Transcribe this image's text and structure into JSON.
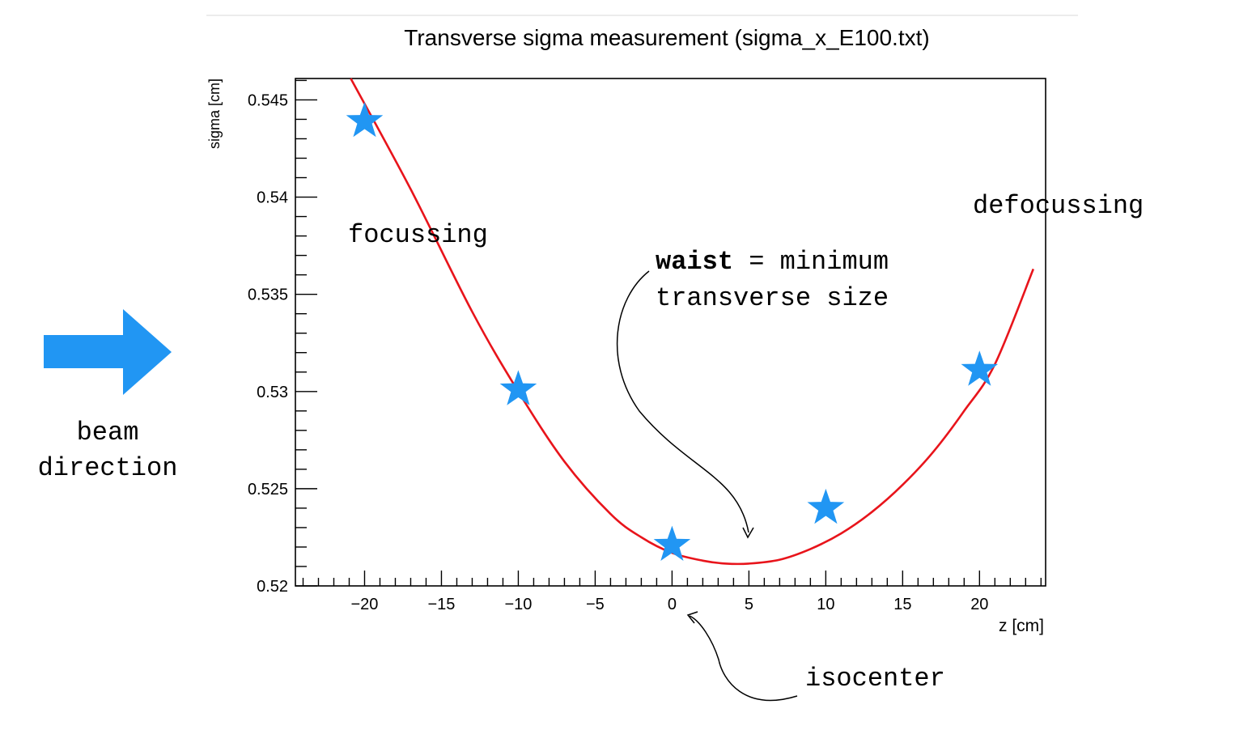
{
  "chart_data": {
    "type": "scatter",
    "title": "Transverse sigma measurement (sigma_x_E100.txt)",
    "xlabel": "z [cm]",
    "ylabel": "sigma [cm]",
    "xlim": [
      -24.5,
      24.3
    ],
    "ylim": [
      0.52,
      0.5461
    ],
    "x_ticks": [
      -20,
      -15,
      -10,
      -5,
      0,
      5,
      10,
      15,
      20
    ],
    "x_tick_labels": [
      "−20",
      "−15",
      "−10",
      "−5",
      "0",
      "5",
      "10",
      "15",
      "20"
    ],
    "y_ticks": [
      0.52,
      0.525,
      0.53,
      0.535,
      0.54,
      0.545
    ],
    "y_tick_labels": [
      "0.52",
      "0.525",
      "0.53",
      "0.535",
      "0.54",
      "0.545"
    ],
    "grid": false,
    "series": [
      {
        "marker": "star",
        "color": "#2196F3",
        "x": [
          -20,
          -10,
          0,
          10,
          20
        ],
        "y": [
          0.5439,
          0.5301,
          0.5221,
          0.524,
          0.5311
        ]
      }
    ],
    "fit_curve": {
      "color": "#E8141B",
      "x": [
        -20.9,
        -17,
        -13,
        -10,
        -7,
        -4,
        -2,
        0,
        2,
        3.5,
        5,
        7,
        9,
        11,
        13,
        15,
        17,
        19,
        21,
        23.5
      ],
      "y": [
        0.5461,
        0.5404,
        0.5341,
        0.53,
        0.5264,
        0.5237,
        0.5225,
        0.5217,
        0.5213,
        0.52115,
        0.52115,
        0.52135,
        0.5219,
        0.5227,
        0.5238,
        0.5252,
        0.5269,
        0.529,
        0.5314,
        0.5363
      ]
    }
  },
  "annotations": {
    "focussing": "focussing",
    "defocussing": "defocussing",
    "waist_bold": "waist",
    "waist_rest": " = minimum",
    "waist_line2": "transverse size",
    "isocenter": "isocenter",
    "beam_line1": "beam",
    "beam_line2": "direction"
  },
  "colors": {
    "beam_arrow": "#2196F3",
    "star": "#2196F3",
    "curve": "#E8141B",
    "axis": "#000000"
  }
}
